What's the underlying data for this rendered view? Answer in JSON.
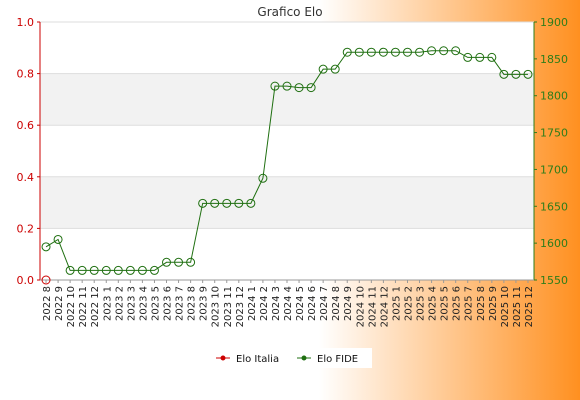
{
  "colors": {
    "background_left": "#ffffff",
    "background_right": "#ff9020",
    "plot_bg": "#ffffff",
    "band": "#f2f2f2",
    "grid": "#dddddd",
    "left_axis": "#cc0000",
    "right_axis": "#2e7d1a",
    "series_italia": "#cc0000",
    "series_fide": "#1f6f10"
  },
  "chart_data": {
    "type": "line",
    "title": "Grafico Elo",
    "x_categories": [
      "2022 8",
      "2022 9",
      "2022 10",
      "2022 11",
      "2022 12",
      "2023 1",
      "2023 2",
      "2023 3",
      "2023 4",
      "2023 5",
      "2023 6",
      "2023 7",
      "2023 8",
      "2023 9",
      "2023 10",
      "2023 11",
      "2023 12",
      "2024 1",
      "2024 2",
      "2024 3",
      "2024 4",
      "2024 5",
      "2024 6",
      "2024 7",
      "2024 8",
      "2024 9",
      "2024 10",
      "2024 11",
      "2024 12",
      "2025 1",
      "2025 2",
      "2025 3",
      "2025 4",
      "2025 5",
      "2025 6",
      "2025 7",
      "2025 8",
      "2025 9",
      "2025 10",
      "2025 11",
      "2025 12"
    ],
    "left_axis": {
      "range": [
        0.0,
        1.0
      ],
      "ticks": [
        "0.0",
        "0.2",
        "0.4",
        "0.6",
        "0.8",
        "1.0"
      ]
    },
    "right_axis": {
      "range": [
        1550,
        1900
      ],
      "ticks": [
        "1550",
        "1600",
        "1650",
        "1700",
        "1750",
        "1800",
        "1850",
        "1900"
      ]
    },
    "grid": true,
    "legend_position": "bottom",
    "series": [
      {
        "name": "Elo Italia",
        "axis": "left",
        "values": [
          0
        ]
      },
      {
        "name": "Elo FIDE",
        "axis": "right",
        "values": [
          1595,
          1605,
          1563,
          1563,
          1563,
          1563,
          1563,
          1563,
          1563,
          1563,
          1574,
          1574,
          1574,
          1654,
          1654,
          1654,
          1654,
          1654,
          1688,
          1813,
          1813,
          1811,
          1811,
          1836,
          1836,
          1859,
          1859,
          1859,
          1859,
          1859,
          1859,
          1859,
          1861,
          1861,
          1861,
          1852,
          1852,
          1852,
          1829,
          1829,
          1829
        ]
      }
    ]
  }
}
